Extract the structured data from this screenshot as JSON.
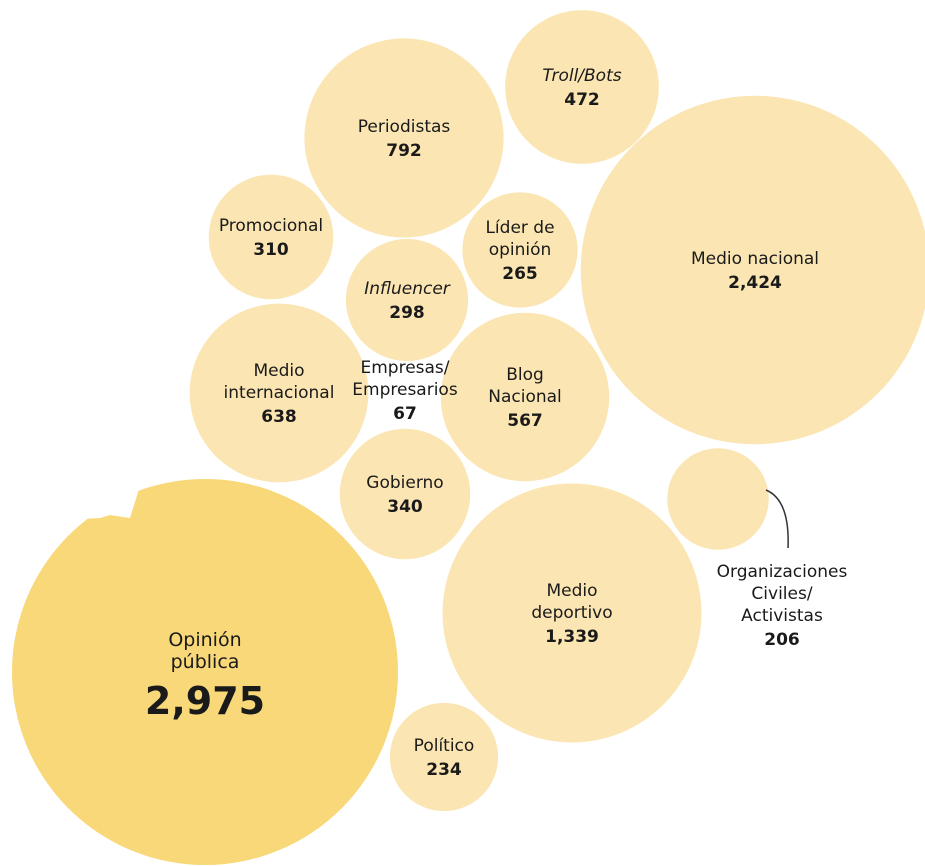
{
  "chart_data": {
    "type": "bubble",
    "series": [
      {
        "label": [
          "Opinión",
          "pública"
        ],
        "value": 2975,
        "display": "2,975",
        "highlight": true
      },
      {
        "label": [
          "Medio nacional"
        ],
        "value": 2424,
        "display": "2,424"
      },
      {
        "label": [
          "Medio",
          "deportivo"
        ],
        "value": 1339,
        "display": "1,339"
      },
      {
        "label": [
          "Periodistas"
        ],
        "value": 792,
        "display": "792"
      },
      {
        "label": [
          "Medio",
          "internacional"
        ],
        "value": 638,
        "display": "638"
      },
      {
        "label": [
          "Blog",
          "Nacional"
        ],
        "value": 567,
        "display": "567"
      },
      {
        "label": [
          "Troll/Bots"
        ],
        "value": 472,
        "display": "472",
        "italic": true
      },
      {
        "label": [
          "Gobierno"
        ],
        "value": 340,
        "display": "340"
      },
      {
        "label": [
          "Promocional"
        ],
        "value": 310,
        "display": "310"
      },
      {
        "label": [
          "Influencer"
        ],
        "value": 298,
        "display": "298",
        "italic": true
      },
      {
        "label": [
          "Líder de",
          "opinión"
        ],
        "value": 265,
        "display": "265"
      },
      {
        "label": [
          "Político"
        ],
        "value": 234,
        "display": "234"
      },
      {
        "label": [
          "Organizaciones",
          "Civiles/",
          "Activistas"
        ],
        "value": 206,
        "display": "206",
        "callout": true
      },
      {
        "label": [
          "Empresas/",
          "Empresarios"
        ],
        "value": 67,
        "display": "67"
      }
    ]
  },
  "colors": {
    "highlight_bubble": "#f8d878",
    "bubble": "#fbe6b3",
    "text": "#1a1a1a",
    "callout_line": "#333333"
  }
}
